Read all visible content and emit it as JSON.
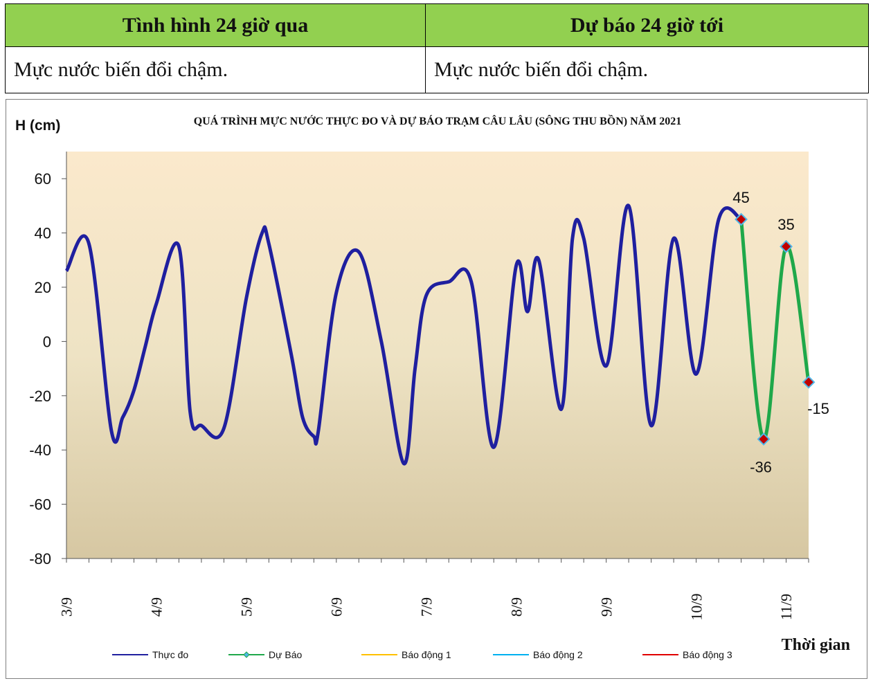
{
  "table": {
    "header_left": "Tình hình 24 giờ qua",
    "header_right": "Dự báo 24 giờ tới",
    "body_left": "Mực nước biến đổi chậm.",
    "body_right": "Mực nước biến đổi chậm."
  },
  "colors": {
    "header_bg": "#92d050",
    "observed": "#1f1f9f",
    "forecast": "#1fa84a",
    "alarm1": "#ffc000",
    "alarm2": "#00b0f0",
    "alarm3": "#e00000",
    "marker_fill": "#c00000",
    "marker_edge": "#4fb7e8"
  },
  "chart_data": {
    "type": "line",
    "title": "QUÁ TRÌNH MỰC NƯỚC THỰC ĐO VÀ DỰ BÁO TRẠM CÂU LÂU (SÔNG THU BỒN) NĂM  2021",
    "ylabel": "H (cm)",
    "xlabel": "Thời gian",
    "ylim": [
      -80,
      70
    ],
    "yticks": [
      -80,
      -60,
      -40,
      -20,
      0,
      20,
      40,
      60
    ],
    "xlim": [
      0,
      33
    ],
    "categories": [
      "3/9",
      "4/9",
      "5/9",
      "6/9",
      "7/9",
      "8/9",
      "9/9",
      "10/9",
      "11/9"
    ],
    "category_positions": [
      0,
      4,
      8,
      12,
      16,
      20,
      24,
      28,
      32
    ],
    "legend_position": "bottom",
    "series": [
      {
        "name": "Thực đo",
        "x": [
          0,
          1,
          2,
          2.5,
          3,
          3.5,
          4,
          5,
          5.5,
          6,
          7,
          8,
          8.7,
          9,
          10,
          10.5,
          11,
          11.2,
          12,
          13,
          14,
          15,
          15.5,
          16,
          17,
          18,
          19,
          20,
          20.5,
          21,
          22,
          22.5,
          23,
          24,
          25,
          26,
          27,
          28,
          29,
          30
        ],
        "y": [
          26,
          36,
          -33,
          -28,
          -18,
          -2,
          14,
          35,
          -26,
          -31,
          -32,
          16,
          40,
          36,
          -5,
          -28,
          -35,
          -33,
          18,
          33,
          0,
          -45,
          -10,
          17,
          22,
          22,
          -39,
          28,
          11,
          30,
          -25,
          38,
          38,
          -9,
          50,
          -31,
          38,
          -12,
          45,
          45
        ]
      },
      {
        "name": "Dự Báo",
        "x": [
          30,
          31,
          32,
          33
        ],
        "y": [
          45,
          -36,
          35,
          -15
        ],
        "labels": [
          "45",
          "-36",
          "35",
          "-15"
        ]
      },
      {
        "name": "Báo động  1",
        "x": [],
        "y": []
      },
      {
        "name": "Báo động  2",
        "x": [],
        "y": []
      },
      {
        "name": "Báo động  3",
        "x": [],
        "y": []
      }
    ]
  }
}
